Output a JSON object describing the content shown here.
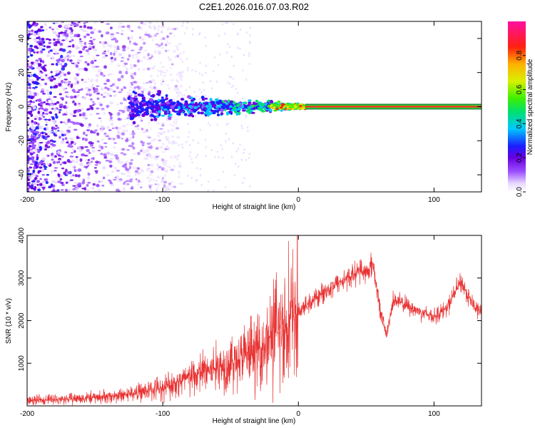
{
  "figure": {
    "title": "C2E1.2026.016.07.03.R02"
  },
  "chart_data": [
    {
      "type": "heatmap",
      "title": "C2E1.2026.016.07.03.R02",
      "xlabel": "Height of straight line (km)",
      "ylabel": "Frequency (Hz)",
      "xlim": [
        -200,
        135
      ],
      "ylim": [
        -50,
        50
      ],
      "xticks": [
        -200,
        -100,
        0,
        100
      ],
      "yticks": [
        -40,
        -20,
        0,
        20,
        40
      ],
      "colorbar": {
        "label": "Normalized spectral amplitude",
        "range": [
          0,
          1
        ],
        "ticks": [
          0.0,
          0.2,
          0.4,
          0.6,
          0.8
        ]
      },
      "features": {
        "noise_region_km": [
          -200,
          -95
        ],
        "signal_emerges_km": -125,
        "stable_carrier_from_km": 5,
        "carrier_frequency_hz": 0
      }
    },
    {
      "type": "line",
      "xlabel": "Height of straight line (km)",
      "ylabel": "SNR (10 * v/v)",
      "xlim": [
        -200,
        135
      ],
      "ylim": [
        0,
        4000
      ],
      "xticks": [
        -200,
        -100,
        0,
        100
      ],
      "yticks": [
        1000,
        2000,
        3000,
        4000
      ],
      "series": [
        {
          "name": "SNR",
          "color": "#e83232",
          "x": [
            -200,
            -180,
            -160,
            -140,
            -120,
            -100,
            -90,
            -80,
            -70,
            -60,
            -50,
            -40,
            -30,
            -20,
            -10,
            0,
            10,
            20,
            30,
            40,
            45,
            50,
            55,
            60,
            65,
            70,
            80,
            90,
            100,
            110,
            115,
            120,
            125,
            130,
            135
          ],
          "y": [
            120,
            150,
            180,
            220,
            300,
            420,
            550,
            650,
            800,
            900,
            1000,
            1150,
            1300,
            1600,
            1900,
            2200,
            2450,
            2700,
            2900,
            3050,
            3200,
            3100,
            3350,
            2300,
            1650,
            2500,
            2350,
            2200,
            2100,
            2300,
            2650,
            2900,
            2600,
            2300,
            2200
          ]
        }
      ]
    }
  ]
}
